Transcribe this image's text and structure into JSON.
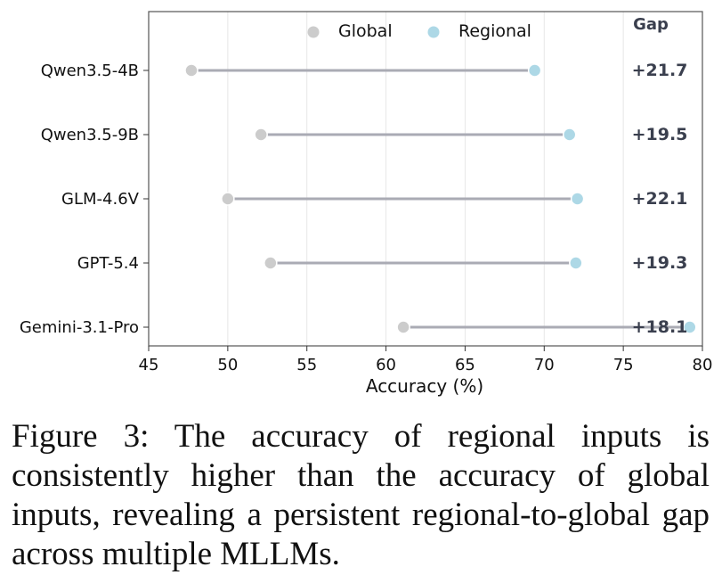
{
  "chart_data": {
    "type": "dumbbell",
    "categories": [
      "Qwen3.5-4B",
      "Qwen3.5-9B",
      "GLM-4.6V",
      "GPT-5.4",
      "Gemini-3.1-Pro"
    ],
    "series": [
      {
        "name": "Global",
        "values": [
          47.7,
          52.1,
          50.0,
          52.7,
          61.1
        ],
        "color": "#cccccc"
      },
      {
        "name": "Regional",
        "values": [
          69.4,
          71.6,
          72.1,
          72.0,
          79.2
        ],
        "color": "#add8e6"
      }
    ],
    "connector_color": "#aaabb4",
    "gap_header": "Gap",
    "gaps": [
      "+21.7",
      "+19.5",
      "+22.1",
      "+19.3",
      "+18.1"
    ],
    "xlabel": "Accuracy (%)",
    "xlim": [
      45,
      80
    ],
    "xticks": [
      "45",
      "50",
      "55",
      "60",
      "65",
      "70",
      "75",
      "80"
    ],
    "grid": "vertical",
    "legend_position": "top"
  },
  "caption": "Figure 3: The accuracy of regional inputs is consistently higher than the accuracy of global inputs, revealing a persistent regional-to-global gap across multiple MLLMs."
}
